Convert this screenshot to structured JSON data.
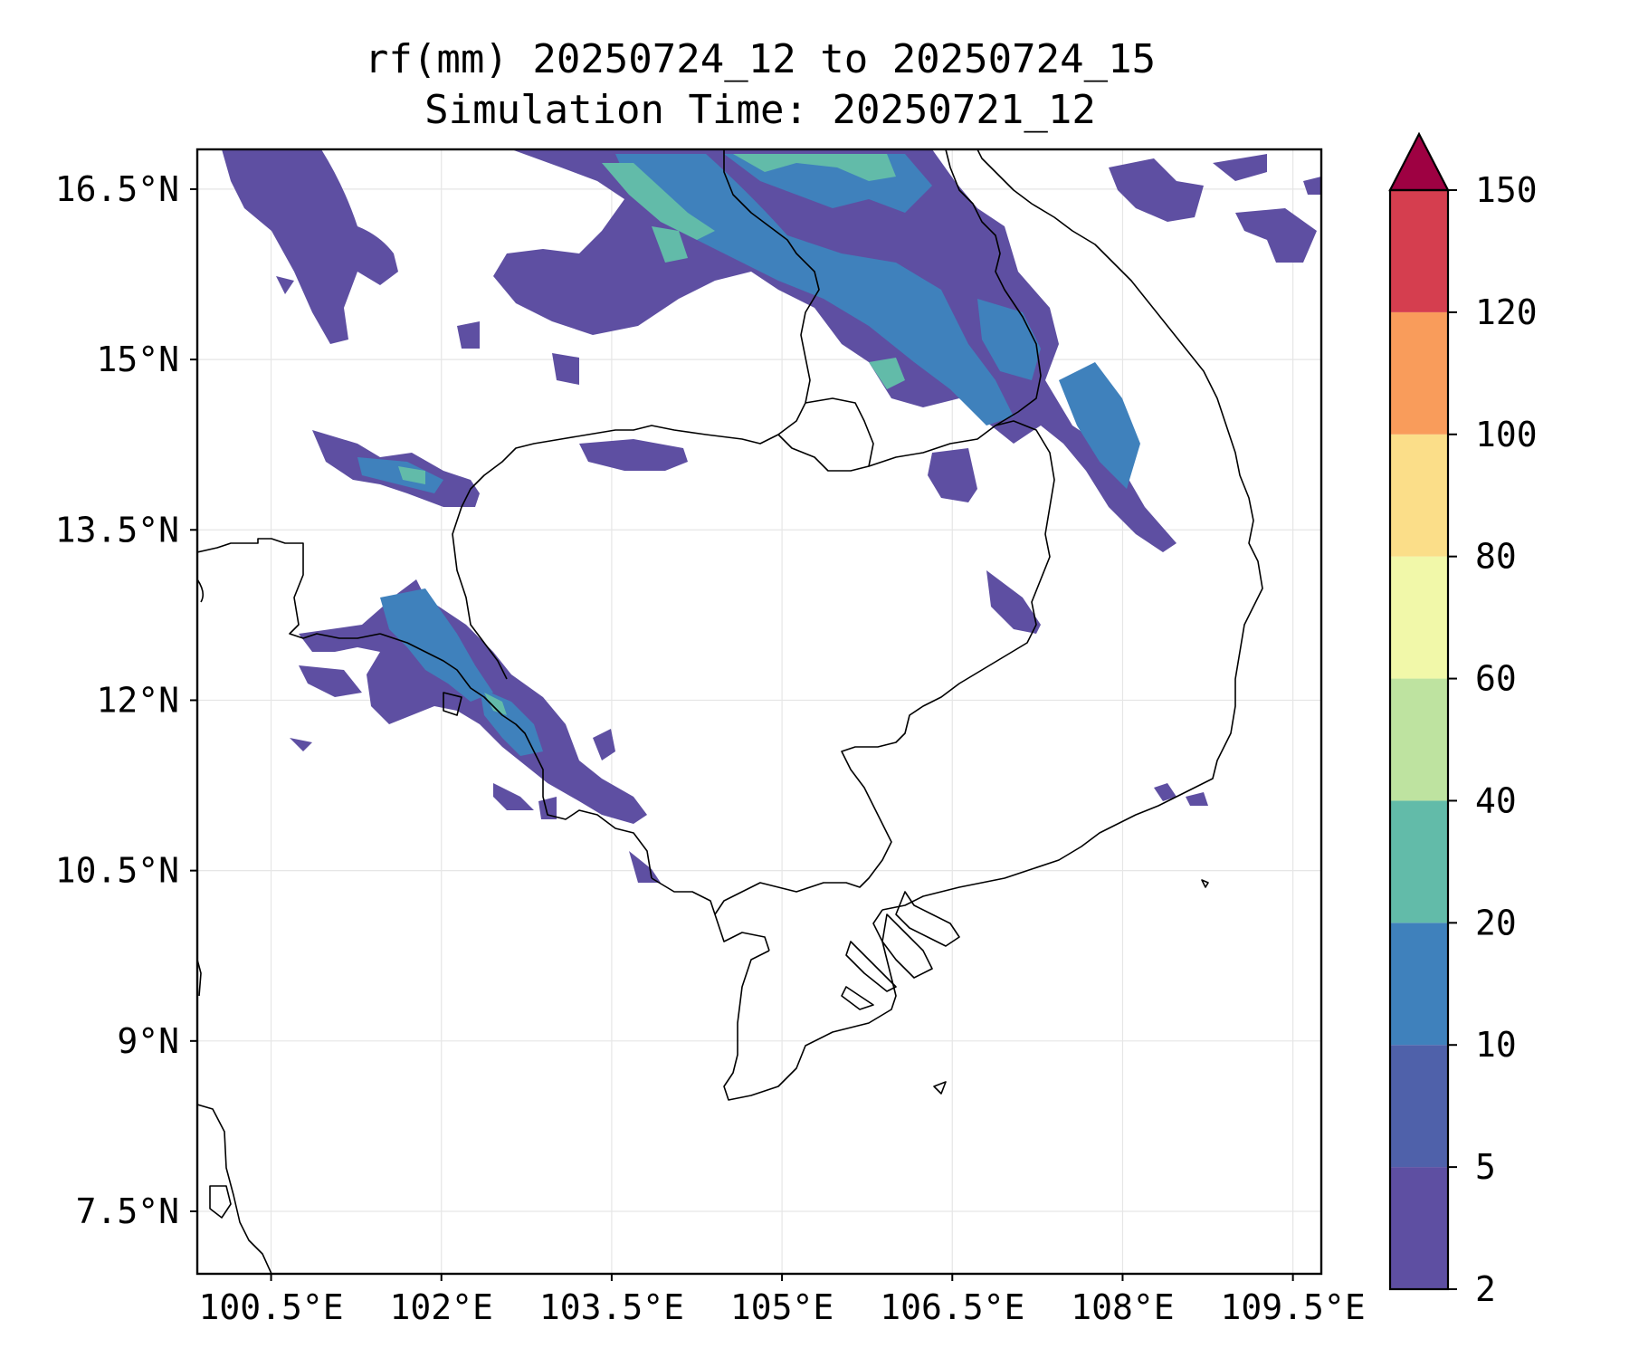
{
  "title": {
    "line1": "rf(mm) 20250724_12 to 20250724_15",
    "line2": "Simulation Time: 20250721_12"
  },
  "map": {
    "lon_range": [
      99.85,
      109.75
    ],
    "lat_range": [
      6.95,
      16.85
    ],
    "x_ticks": [
      {
        "lon": 100.5,
        "label": "100.5°E"
      },
      {
        "lon": 102,
        "label": "102°E"
      },
      {
        "lon": 103.5,
        "label": "103.5°E"
      },
      {
        "lon": 105,
        "label": "105°E"
      },
      {
        "lon": 106.5,
        "label": "106.5°E"
      },
      {
        "lon": 108,
        "label": "108°E"
      },
      {
        "lon": 109.5,
        "label": "109.5°E"
      }
    ],
    "y_ticks": [
      {
        "lat": 16.5,
        "label": "16.5°N"
      },
      {
        "lat": 15,
        "label": "15°N"
      },
      {
        "lat": 13.5,
        "label": "13.5°N"
      },
      {
        "lat": 12,
        "label": "12°N"
      },
      {
        "lat": 10.5,
        "label": "10.5°N"
      },
      {
        "lat": 9,
        "label": "9°N"
      },
      {
        "lat": 7.5,
        "label": "7.5°N"
      }
    ]
  },
  "colorbar": {
    "levels": [
      {
        "label": "2",
        "color": "#5e4fa2"
      },
      {
        "label": "5",
        "color": "#4f61aa"
      },
      {
        "label": "10",
        "color": "#3f81bc"
      },
      {
        "label": "20",
        "color": "#62bba9"
      },
      {
        "label": "40",
        "color": "#bee3a0"
      },
      {
        "label": "60",
        "color": "#f1f8a9"
      },
      {
        "label": "80",
        "color": "#fbde89"
      },
      {
        "label": "100",
        "color": "#f99c5b"
      },
      {
        "label": "120",
        "color": "#d53e4f"
      },
      {
        "label": "150",
        "color": "#9e0142"
      }
    ],
    "extend": "max"
  }
}
